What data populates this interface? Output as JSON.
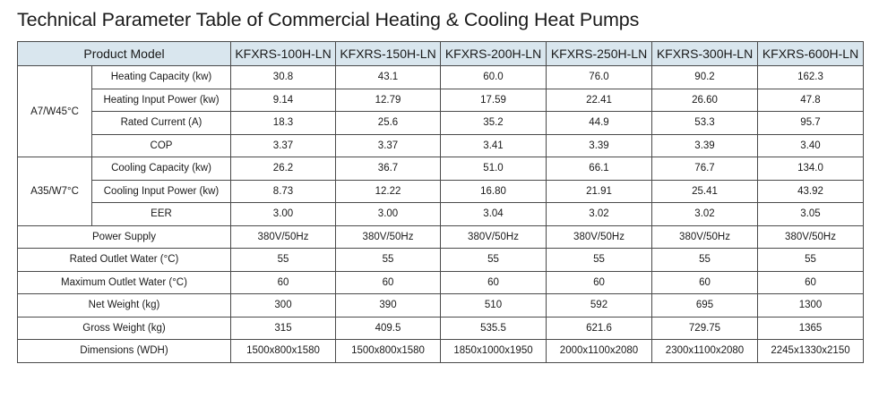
{
  "title": "Technical Parameter Table of Commercial Heating & Cooling Heat Pumps",
  "header": {
    "label": "Product Model",
    "models": [
      "KFXRS-100H-LN",
      "KFXRS-150H-LN",
      "KFXRS-200H-LN",
      "KFXRS-250H-LN",
      "KFXRS-300H-LN",
      "KFXRS-600H-LN"
    ]
  },
  "groups": [
    {
      "name": "A7/W45°C",
      "rows": [
        {
          "label": "Heating Capacity (kw)",
          "values": [
            "30.8",
            "43.1",
            "60.0",
            "76.0",
            "90.2",
            "162.3"
          ]
        },
        {
          "label": "Heating Input Power (kw)",
          "values": [
            "9.14",
            "12.79",
            "17.59",
            "22.41",
            "26.60",
            "47.8"
          ]
        },
        {
          "label": "Rated Current (A)",
          "values": [
            "18.3",
            "25.6",
            "35.2",
            "44.9",
            "53.3",
            "95.7"
          ]
        },
        {
          "label": "COP",
          "values": [
            "3.37",
            "3.37",
            "3.41",
            "3.39",
            "3.39",
            "3.40"
          ]
        }
      ]
    },
    {
      "name": "A35/W7°C",
      "rows": [
        {
          "label": "Cooling Capacity (kw)",
          "values": [
            "26.2",
            "36.7",
            "51.0",
            "66.1",
            "76.7",
            "134.0"
          ]
        },
        {
          "label": "Cooling Input Power (kw)",
          "values": [
            "8.73",
            "12.22",
            "16.80",
            "21.91",
            "25.41",
            "43.92"
          ]
        },
        {
          "label": "EER",
          "values": [
            "3.00",
            "3.00",
            "3.04",
            "3.02",
            "3.02",
            "3.05"
          ]
        }
      ]
    }
  ],
  "rows": [
    {
      "label": "Power Supply",
      "values": [
        "380V/50Hz",
        "380V/50Hz",
        "380V/50Hz",
        "380V/50Hz",
        "380V/50Hz",
        "380V/50Hz"
      ]
    },
    {
      "label": "Rated Outlet Water (°C)",
      "values": [
        "55",
        "55",
        "55",
        "55",
        "55",
        "55"
      ]
    },
    {
      "label": "Maximum Outlet Water (°C)",
      "values": [
        "60",
        "60",
        "60",
        "60",
        "60",
        "60"
      ]
    },
    {
      "label": "Net Weight (kg)",
      "values": [
        "300",
        "390",
        "510",
        "592",
        "695",
        "1300"
      ]
    },
    {
      "label": "Gross Weight (kg)",
      "values": [
        "315",
        "409.5",
        "535.5",
        "621.6",
        "729.75",
        "1365"
      ]
    },
    {
      "label": "Dimensions (WDH)",
      "values": [
        "1500x800x1580",
        "1500x800x1580",
        "1850x1000x1950",
        "2000x1100x2080",
        "2300x1100x2080",
        "2245x1330x2150"
      ]
    }
  ]
}
